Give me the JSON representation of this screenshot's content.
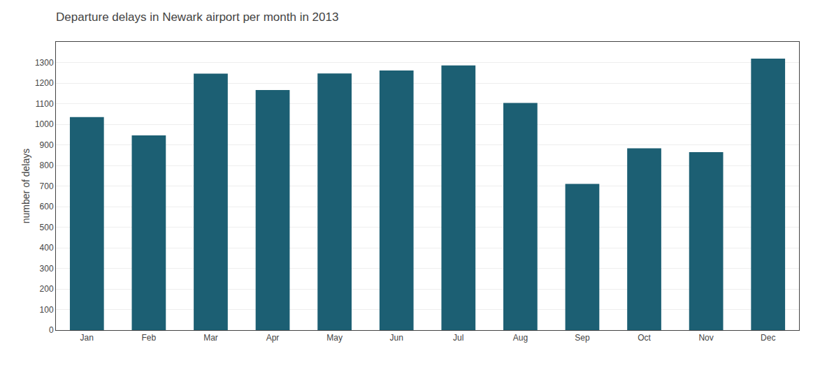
{
  "chart_data": {
    "type": "bar",
    "title": "Departure delays in Newark airport per month in 2013",
    "ylabel": "number of delays",
    "categories": [
      "Jan",
      "Feb",
      "Mar",
      "Apr",
      "May",
      "Jun",
      "Jul",
      "Aug",
      "Sep",
      "Oct",
      "Nov",
      "Dec"
    ],
    "values": [
      1035,
      946,
      1246,
      1166,
      1247,
      1261,
      1286,
      1103,
      710,
      883,
      864,
      1319
    ],
    "color": "#1c5f73",
    "ylim": [
      0,
      1400
    ],
    "yticks": [
      0,
      100,
      200,
      300,
      400,
      500,
      600,
      700,
      800,
      900,
      1000,
      1100,
      1200,
      1300
    ],
    "grid": true
  }
}
